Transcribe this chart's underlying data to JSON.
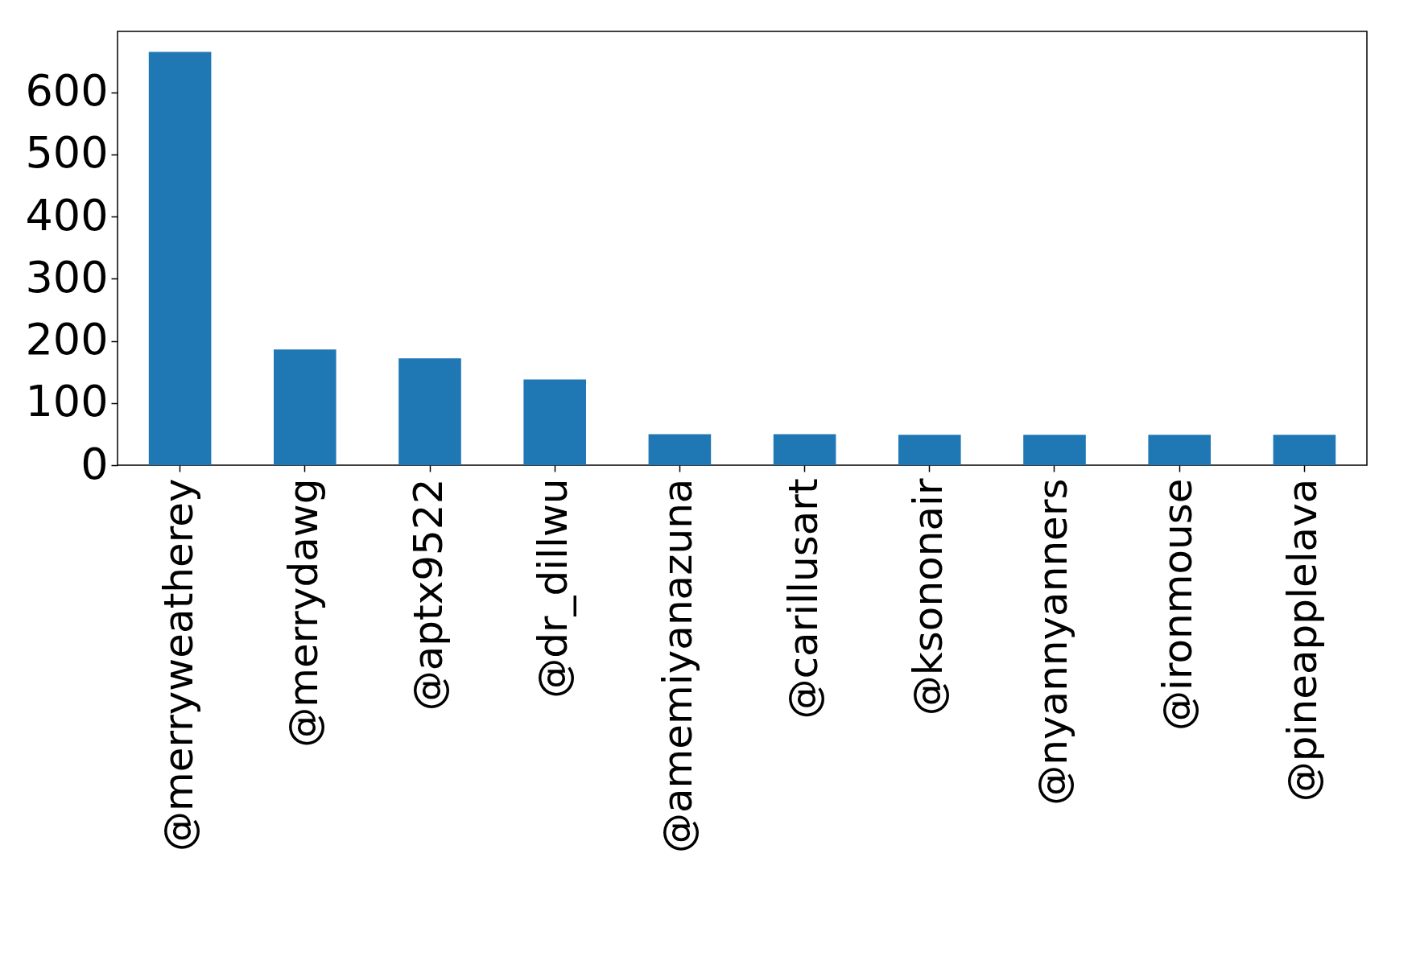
{
  "chart_data": {
    "type": "bar",
    "categories": [
      "@merryweatherey",
      "@merrydawg",
      "@aptx9522",
      "@dr_dillwu",
      "@amemiyanazuna",
      "@carillusart",
      "@ksononair",
      "@nyannyanners",
      "@ironmouse",
      "@pineapplelava"
    ],
    "values": [
      665,
      186,
      172,
      138,
      50,
      50,
      49,
      49,
      49,
      49
    ],
    "color": "#1f77b4",
    "ylim": [
      0,
      698
    ],
    "yticks": [
      0,
      100,
      200,
      300,
      400,
      500,
      600
    ],
    "grid": false
  }
}
